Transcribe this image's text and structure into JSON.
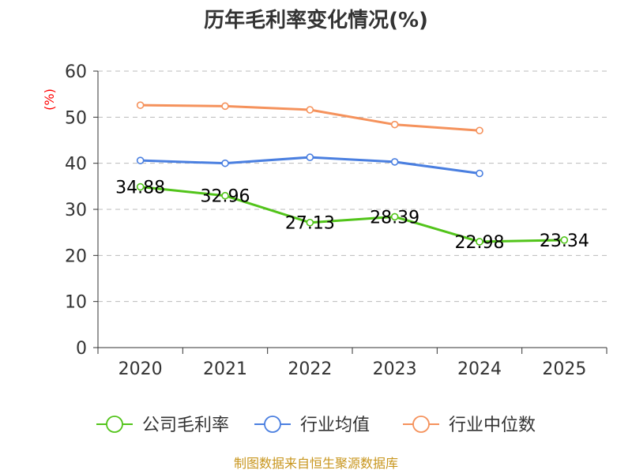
{
  "chart_data": {
    "type": "line",
    "title": "历年毛利率变化情况(%)",
    "ylabel": "(%)",
    "xlabel": "",
    "categories": [
      "2020",
      "2021",
      "2022",
      "2023",
      "2024",
      "2025"
    ],
    "yticks": [
      "0",
      "10",
      "20",
      "30",
      "40",
      "50",
      "60"
    ],
    "ylim": [
      0,
      60
    ],
    "grid": true,
    "legend_position": "bottom",
    "series": [
      {
        "name": "公司毛利率",
        "color": "#52c41a",
        "values": [
          34.88,
          32.96,
          27.13,
          28.39,
          22.98,
          23.34
        ],
        "labels": [
          "34.88",
          "32.96",
          "27.13",
          "28.39",
          "22.98",
          "23.34"
        ]
      },
      {
        "name": "行业均值",
        "color": "#4a7fe0",
        "values": [
          40.6,
          40.0,
          41.3,
          40.3,
          37.8,
          null
        ]
      },
      {
        "name": "行业中位数",
        "color": "#f5925c",
        "values": [
          52.6,
          52.4,
          51.6,
          48.4,
          47.1,
          null
        ]
      }
    ]
  },
  "source": "制图数据来自恒生聚源数据库"
}
